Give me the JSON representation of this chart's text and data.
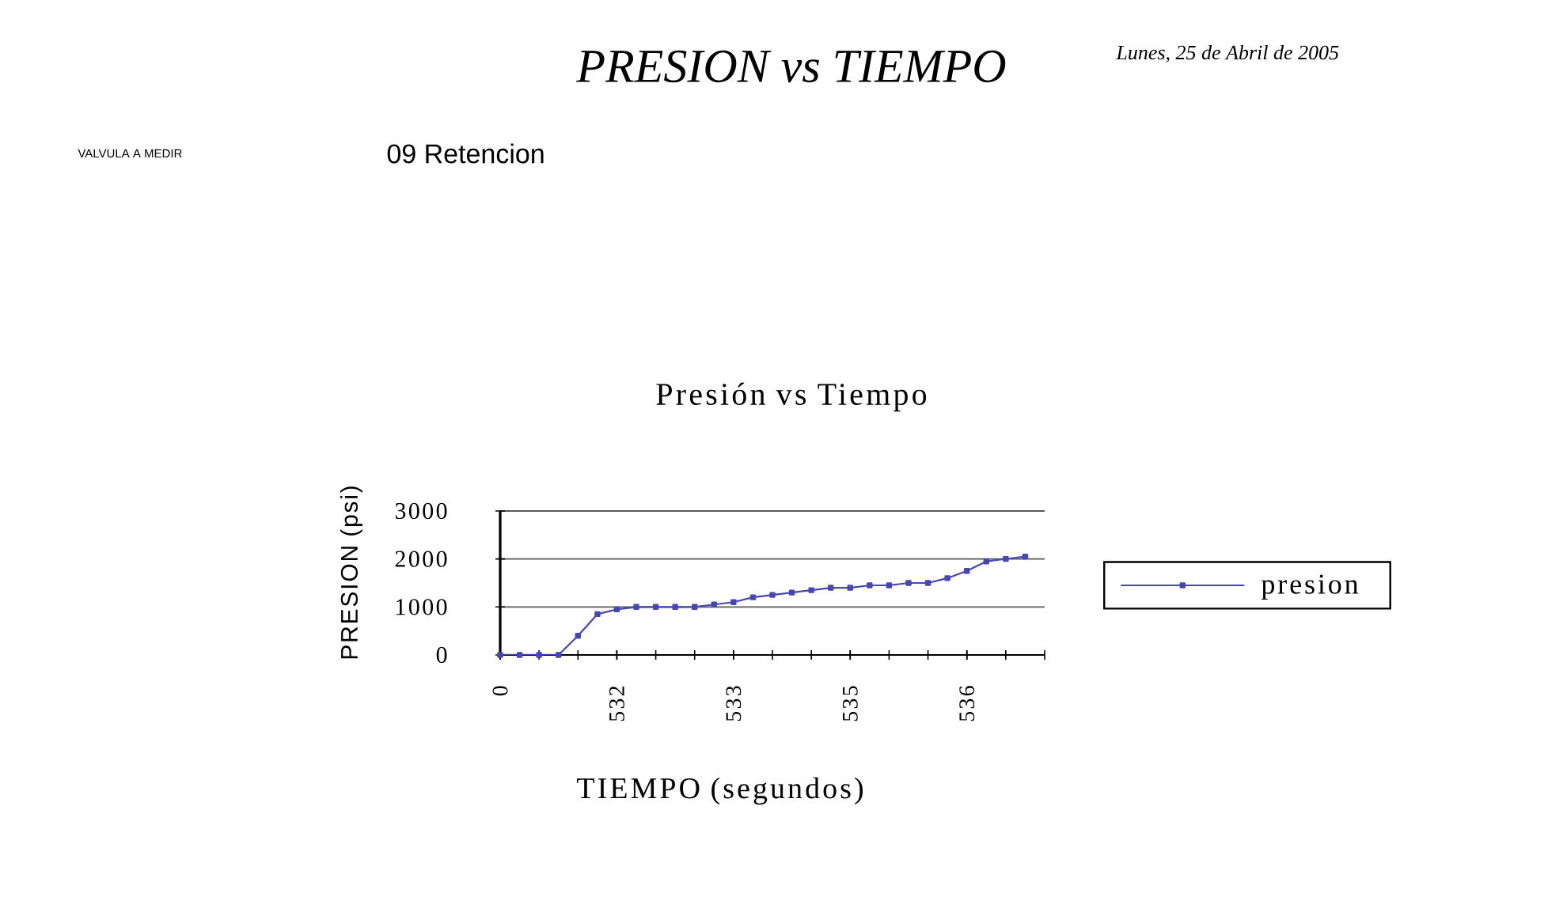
{
  "chart_data": {
    "type": "line",
    "title": "PRESION vs TIEMPO",
    "subtitle": "Presión vs Tiempo",
    "xlabel": "TIEMPO (segundos)",
    "ylabel": "PRESION (psi)",
    "categories": [
      "0",
      null,
      null,
      null,
      null,
      null,
      "532",
      null,
      null,
      null,
      null,
      null,
      "533",
      null,
      null,
      null,
      null,
      null,
      "535",
      null,
      null,
      null,
      null,
      null,
      "536",
      null,
      null,
      null
    ],
    "series": [
      {
        "name": "presion",
        "color": "#4646b4",
        "values": [
          0,
          0,
          0,
          0,
          400,
          850,
          950,
          1000,
          1000,
          1000,
          1000,
          1050,
          1100,
          1200,
          1250,
          1300,
          1350,
          1400,
          1400,
          1450,
          1450,
          1500,
          1500,
          1600,
          1750,
          1950,
          2000,
          2050
        ]
      }
    ],
    "ylim": [
      0,
      3000
    ],
    "yticks": [
      0,
      1000,
      2000,
      3000
    ],
    "grid": "y",
    "legend": "right",
    "marker": "square",
    "annotations": [
      "Lunes, 25 de Abril de 2005",
      "VALVULA A MEDIR",
      "09 Retencion"
    ]
  }
}
